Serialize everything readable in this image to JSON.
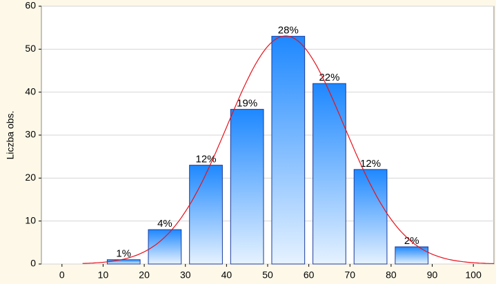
{
  "chart_data": {
    "type": "histogram",
    "y_label": "Liczba obs.",
    "bins": [
      10,
      20,
      30,
      40,
      50,
      60,
      70,
      80,
      90
    ],
    "values": [
      1,
      8,
      23,
      36,
      53,
      42,
      22,
      4
    ],
    "percent_labels": [
      "1%",
      "4%",
      "12%",
      "19%",
      "28%",
      "22%",
      "12%",
      "2%"
    ],
    "color": "#1e88ff",
    "curve_color": "#e8101a",
    "xlim": [
      -5,
      105
    ],
    "xticks": [
      0,
      10,
      20,
      30,
      40,
      50,
      60,
      70,
      80,
      90,
      100
    ],
    "ylim": [
      0,
      60
    ],
    "yticks": [
      0,
      10,
      20,
      30,
      40,
      50,
      60
    ],
    "grid": true
  }
}
